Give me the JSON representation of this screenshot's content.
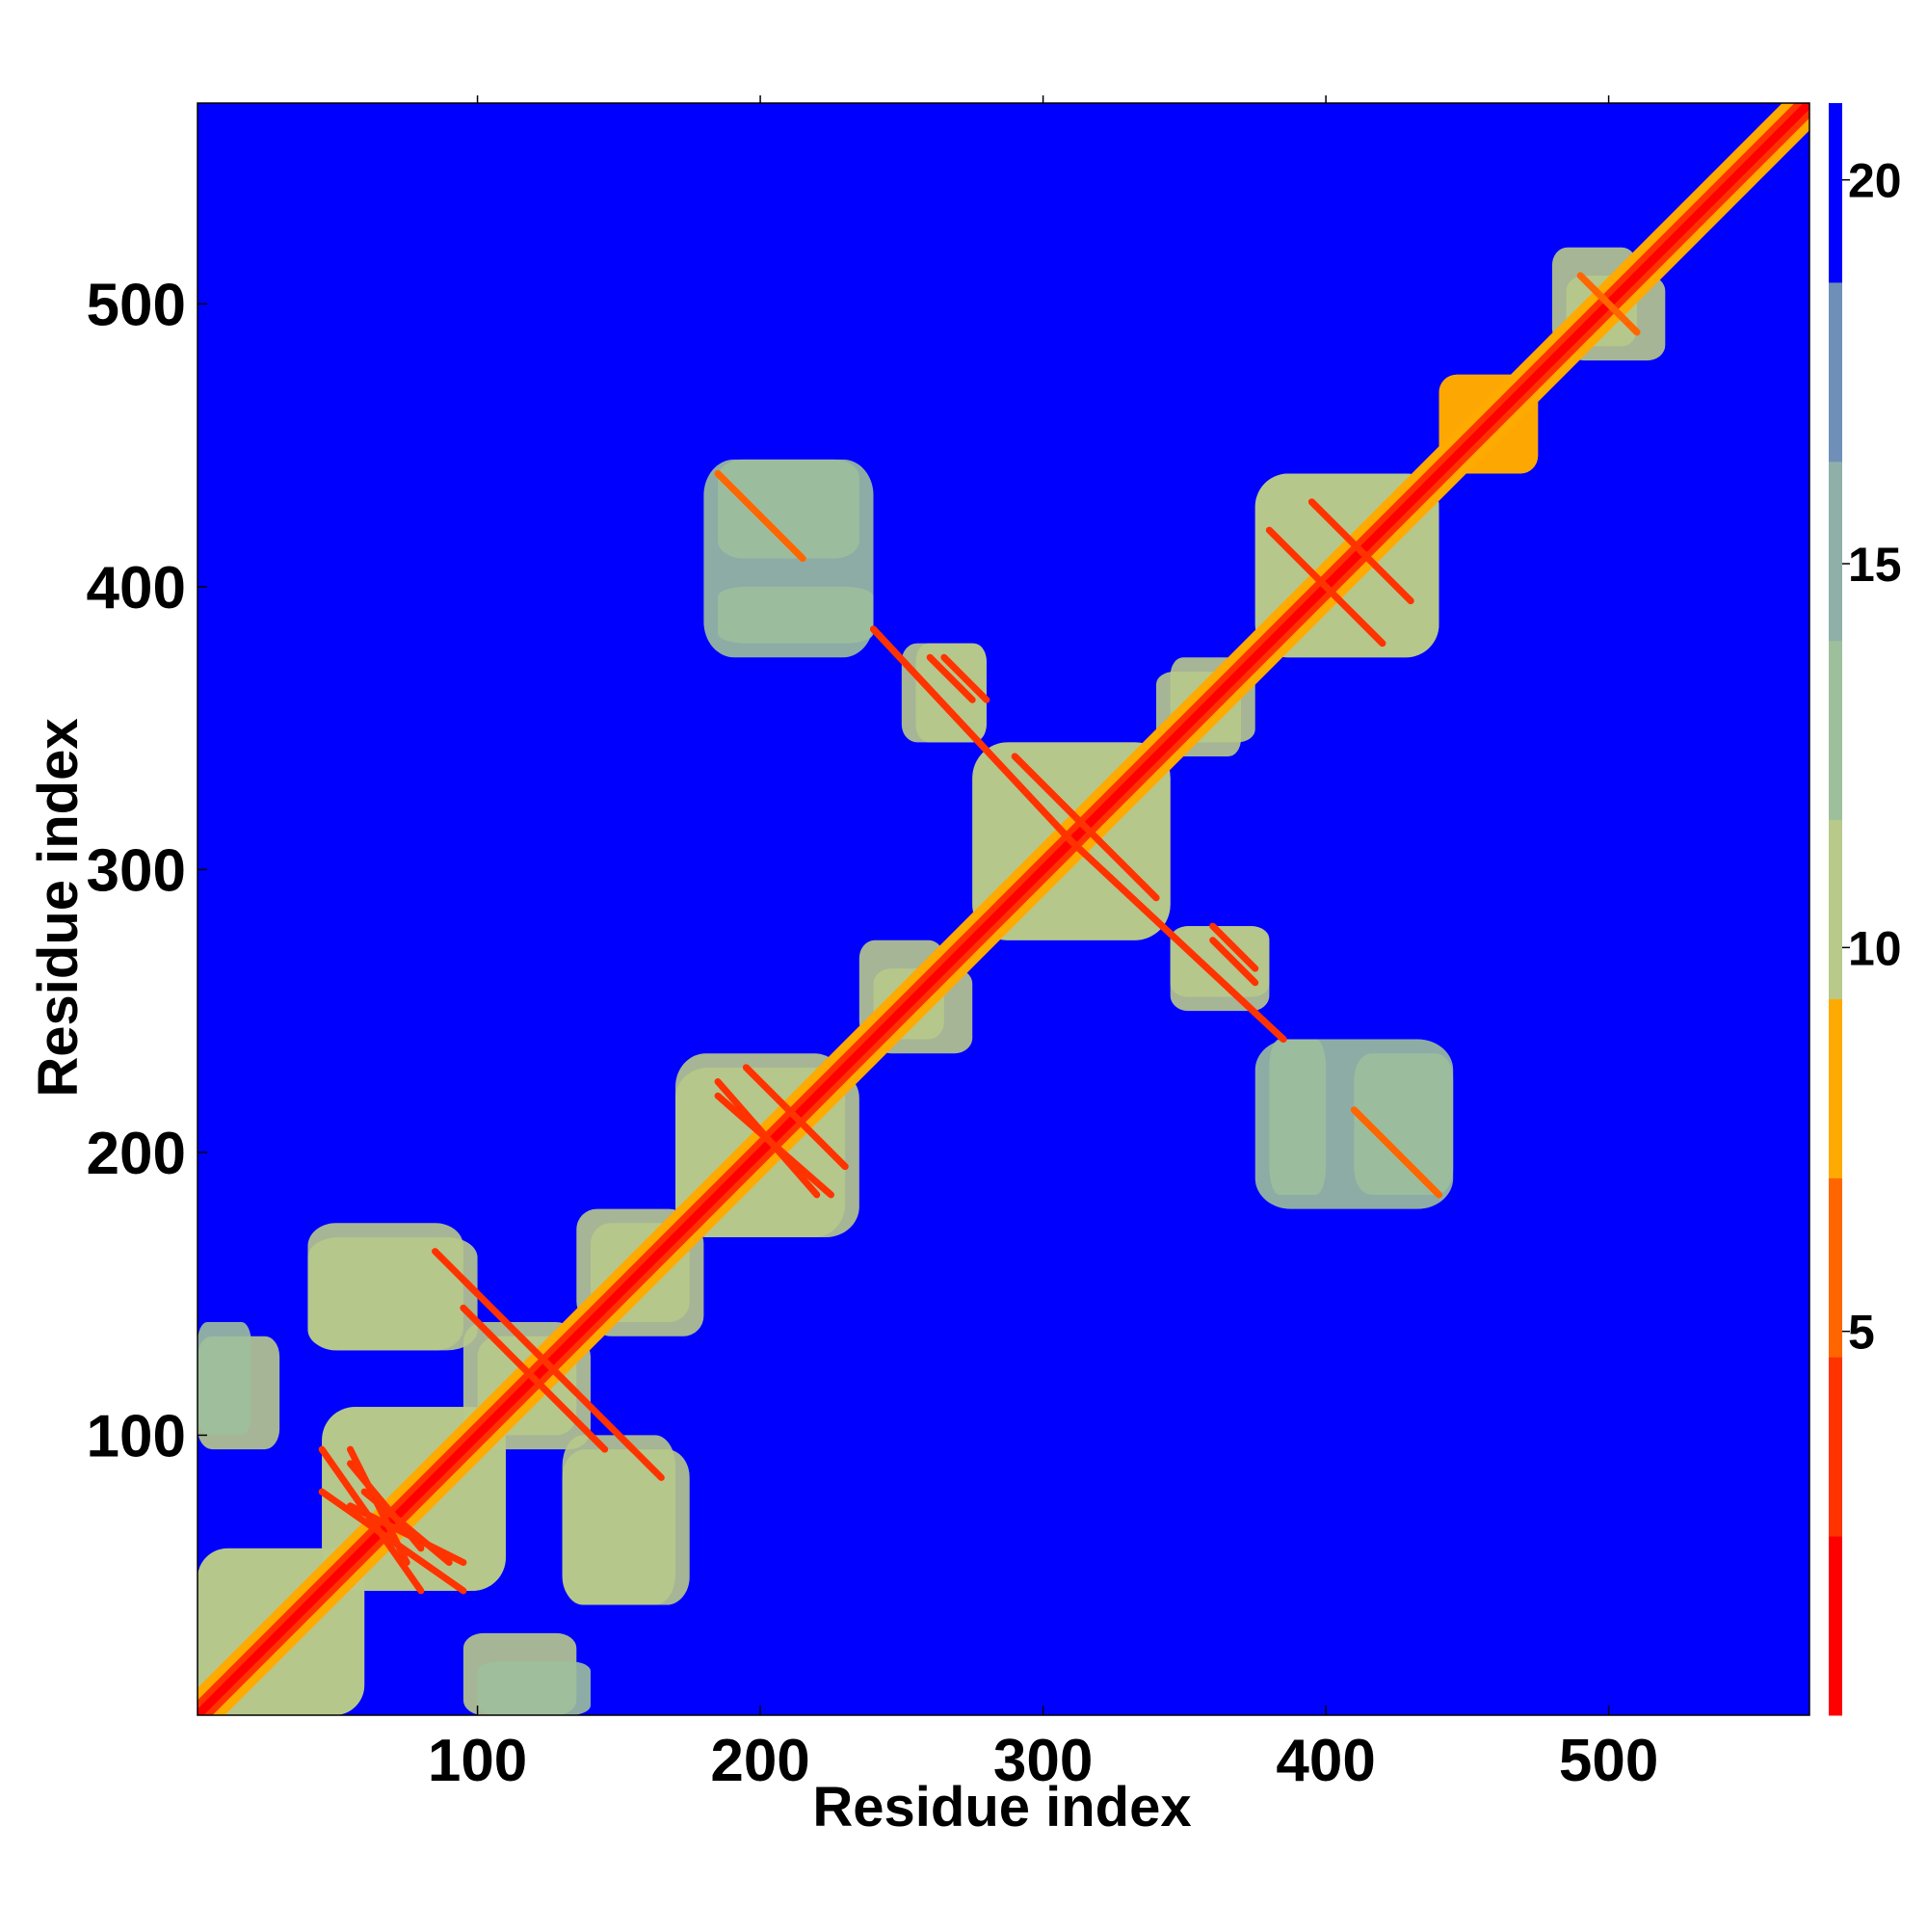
{
  "chart_data": {
    "type": "heatmap",
    "title": "",
    "xlabel": "Residue index",
    "ylabel": "Residue index",
    "xlim": [
      1,
      571
    ],
    "ylim": [
      1,
      571
    ],
    "x_ticks": [
      100,
      200,
      300,
      400,
      500
    ],
    "y_ticks": [
      100,
      200,
      300,
      400,
      500
    ],
    "x_tick_labels": [
      "100",
      "200",
      "300",
      "400",
      "500"
    ],
    "y_tick_labels": [
      "100",
      "200",
      "300",
      "400",
      "500"
    ],
    "colorbar": {
      "min": 0,
      "max": 21,
      "ticks": [
        5,
        10,
        15,
        20
      ],
      "tick_labels": [
        "5",
        "10",
        "15",
        "20"
      ],
      "colors": [
        "#ff0000",
        "#ff3300",
        "#ff6600",
        "#ffaa00",
        "#b8c98a",
        "#9dbf9c",
        "#8fb0a8",
        "#6f8fb8",
        "#0000ff"
      ]
    },
    "background_value": 21,
    "diagonal_value": 0,
    "contact_blocks": [
      {
        "x": [
          1,
          60
        ],
        "y": [
          1,
          60
        ],
        "value": 10
      },
      {
        "x": [
          45,
          110
        ],
        "y": [
          45,
          110
        ],
        "value": 10
      },
      {
        "x": [
          1,
          30
        ],
        "y": [
          95,
          135
        ],
        "value": 11
      },
      {
        "x": [
          40,
          95
        ],
        "y": [
          130,
          175
        ],
        "value": 11
      },
      {
        "x": [
          95,
          135
        ],
        "y": [
          100,
          140
        ],
        "value": 10
      },
      {
        "x": [
          130,
          170
        ],
        "y": [
          40,
          100
        ],
        "value": 11
      },
      {
        "x": [
          100,
          140
        ],
        "y": [
          1,
          20
        ],
        "value": 12
      },
      {
        "x": [
          140,
          180
        ],
        "y": [
          135,
          175
        ],
        "value": 10
      },
      {
        "x": [
          170,
          230
        ],
        "y": [
          170,
          235
        ],
        "value": 10
      },
      {
        "x": [
          235,
          265
        ],
        "y": [
          240,
          275
        ],
        "value": 11
      },
      {
        "x": [
          250,
          280
        ],
        "y": [
          345,
          380
        ],
        "value": 11
      },
      {
        "x": [
          275,
          345
        ],
        "y": [
          275,
          345
        ],
        "value": 10
      },
      {
        "x": [
          345,
          380
        ],
        "y": [
          255,
          280
        ],
        "value": 11
      },
      {
        "x": [
          345,
          370
        ],
        "y": [
          340,
          375
        ],
        "value": 11
      },
      {
        "x": [
          375,
          440
        ],
        "y": [
          375,
          440
        ],
        "value": 10
      },
      {
        "x": [
          380,
          400
        ],
        "y": [
          185,
          240
        ],
        "value": 12
      },
      {
        "x": [
          410,
          445
        ],
        "y": [
          185,
          235
        ],
        "value": 12
      },
      {
        "x": [
          180,
          240
        ],
        "y": [
          375,
          445
        ],
        "value": 12
      },
      {
        "x": [
          440,
          475
        ],
        "y": [
          440,
          475
        ],
        "value": 9
      },
      {
        "x": [
          480,
          510
        ],
        "y": [
          485,
          520
        ],
        "value": 11
      }
    ],
    "strands": [
      {
        "from": [
          55,
          95
        ],
        "to": [
          75,
          55
        ],
        "value": 4
      },
      {
        "from": [
          60,
          80
        ],
        "to": [
          90,
          55
        ],
        "value": 4
      },
      {
        "from": [
          45,
          80
        ],
        "to": [
          95,
          45
        ],
        "value": 4
      },
      {
        "from": [
          95,
          155
        ],
        "to": [
          135,
          115
        ],
        "value": 4
      },
      {
        "from": [
          120,
          120
        ],
        "to": [
          145,
          95
        ],
        "value": 4
      },
      {
        "from": [
          150,
          100
        ],
        "to": [
          165,
          85
        ],
        "value": 4
      },
      {
        "from": [
          185,
          225
        ],
        "to": [
          220,
          185
        ],
        "value": 4
      },
      {
        "from": [
          195,
          230
        ],
        "to": [
          230,
          195
        ],
        "value": 4
      },
      {
        "from": [
          240,
          385
        ],
        "to": [
          310,
          310
        ],
        "value": 4
      },
      {
        "from": [
          265,
          375
        ],
        "to": [
          280,
          360
        ],
        "value": 4
      },
      {
        "from": [
          290,
          340
        ],
        "to": [
          340,
          290
        ],
        "value": 4
      },
      {
        "from": [
          310,
          310
        ],
        "to": [
          385,
          240
        ],
        "value": 4
      },
      {
        "from": [
          360,
          275
        ],
        "to": [
          375,
          260
        ],
        "value": 4
      },
      {
        "from": [
          380,
          420
        ],
        "to": [
          420,
          380
        ],
        "value": 4
      },
      {
        "from": [
          395,
          430
        ],
        "to": [
          430,
          395
        ],
        "value": 4
      },
      {
        "from": [
          185,
          440
        ],
        "to": [
          215,
          410
        ],
        "value": 5
      },
      {
        "from": [
          410,
          215
        ],
        "to": [
          440,
          185
        ],
        "value": 5
      },
      {
        "from": [
          490,
          510
        ],
        "to": [
          510,
          490
        ],
        "value": 5
      }
    ]
  }
}
